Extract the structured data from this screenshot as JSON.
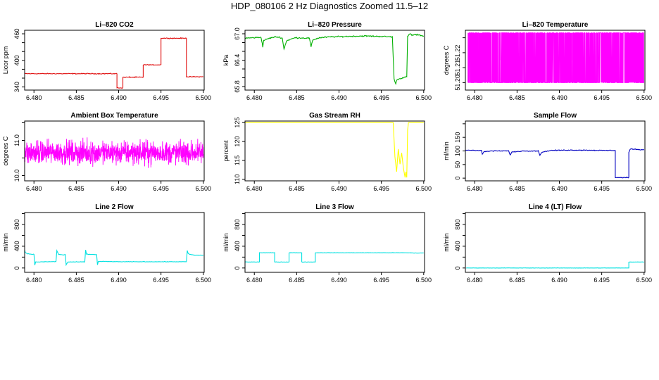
{
  "title": "HDP_080106  2 Hz Diagnostics Zoomed 11.5–12",
  "chart_data": [
    {
      "type": "line",
      "title": "Li–820 CO2",
      "ylabel": "Licor ppm",
      "color": "#e01010",
      "xlim": [
        6.4789,
        6.5001
      ],
      "ylim": [
        333,
        468
      ],
      "xticks": [
        "6.480",
        "6.485",
        "6.490",
        "6.495",
        "6.500"
      ],
      "yticks": [
        "340",
        "360",
        "380",
        "400",
        "420",
        "440",
        "460"
      ],
      "ytick_labels_shown": [
        "340",
        "400",
        "460"
      ],
      "noise": 0.8,
      "x": [
        6.4789,
        6.4898,
        6.4898,
        6.4905,
        6.4905,
        6.4913,
        6.4913,
        6.4921,
        6.4921,
        6.4929,
        6.4929,
        6.494,
        6.494,
        6.495,
        6.495,
        6.498,
        6.498,
        6.4984,
        6.4984,
        6.5
      ],
      "y": [
        370,
        370,
        338,
        338,
        362,
        362,
        362,
        362,
        362,
        362,
        390,
        390,
        390,
        390,
        450,
        450,
        363,
        363,
        363,
        363
      ]
    },
    {
      "type": "line",
      "title": "Li–820 Pressure",
      "ylabel": "kPa",
      "color": "#00b000",
      "xlim": [
        6.4789,
        6.5001
      ],
      "ylim": [
        65.72,
        67.08
      ],
      "xticks": [
        "6.480",
        "6.485",
        "6.490",
        "6.495",
        "6.500"
      ],
      "yticks": [
        "65.8",
        "66.0",
        "66.2",
        "66.4",
        "66.6",
        "66.8",
        "67.0"
      ],
      "ytick_labels_shown": [
        "65.8",
        "66.4",
        "67.0"
      ],
      "noise": 0.012,
      "x": [
        6.4789,
        6.4808,
        6.481,
        6.4811,
        6.4818,
        6.4825,
        6.483,
        6.4833,
        6.4835,
        6.4838,
        6.4848,
        6.4865,
        6.4867,
        6.4869,
        6.4877,
        6.489,
        6.491,
        6.493,
        6.495,
        6.4963,
        6.4965,
        6.4967,
        6.4968,
        6.4975,
        6.498,
        6.4981,
        6.4984,
        6.4986,
        6.4992,
        6.5
      ],
      "y": [
        66.9,
        66.92,
        66.7,
        66.85,
        66.9,
        66.93,
        66.92,
        66.9,
        66.65,
        66.84,
        66.91,
        66.9,
        66.7,
        66.86,
        66.91,
        66.93,
        66.94,
        66.95,
        66.94,
        66.93,
        65.98,
        65.85,
        65.95,
        66.0,
        66.02,
        66.94,
        67.0,
        66.97,
        66.98,
        66.95
      ]
    },
    {
      "type": "digital",
      "title": "Li–820 Temperature",
      "ylabel": "degrees C",
      "color": "#ff00ff",
      "xlim": [
        6.4789,
        6.5001
      ],
      "ylim": [
        51.195,
        51.235
      ],
      "xticks": [
        "6.480",
        "6.485",
        "6.490",
        "6.495",
        "6.500"
      ],
      "yticks": [
        "51.20",
        "51.21",
        "51.22",
        "51.23"
      ],
      "ytick_labels_shown": [
        "51.20",
        "51.21",
        "51.22"
      ],
      "x": [
        6.4792,
        6.5
      ],
      "y": [
        51.2,
        51.2333
      ]
    },
    {
      "type": "noise",
      "title": "Ambient Box Temperature",
      "ylabel": "degrees C",
      "color": "#ff00ff",
      "xlim": [
        6.4789,
        6.5001
      ],
      "ylim": [
        9.85,
        11.55
      ],
      "xticks": [
        "6.480",
        "6.485",
        "6.490",
        "6.495",
        "6.500"
      ],
      "yticks": [
        "10.0",
        "10.5",
        "11.0",
        "11.5"
      ],
      "ytick_labels_shown": [
        "10.0",
        "11.0"
      ],
      "x": [
        6.4789,
        6.5
      ],
      "y": [
        10.65,
        10.65
      ]
    },
    {
      "type": "line",
      "title": "Gas Stream RH",
      "ylabel": "percent",
      "color": "#ffff00",
      "xlim": [
        6.4789,
        6.5001
      ],
      "ylim": [
        109.6,
        125.4
      ],
      "xticks": [
        "6.480",
        "6.485",
        "6.490",
        "6.495",
        "6.500"
      ],
      "yticks": [
        "110",
        "115",
        "120",
        "125"
      ],
      "ytick_labels_shown": [
        "110",
        "115",
        "120",
        "125"
      ],
      "noise": 0.0,
      "x": [
        6.4789,
        6.4964,
        6.4966,
        6.4968,
        6.497,
        6.4972,
        6.4974,
        6.4976,
        6.4978,
        6.4979,
        6.498,
        6.4981,
        6.4982,
        6.5
      ],
      "y": [
        125,
        125,
        116,
        112,
        118,
        114,
        117,
        113,
        110.5,
        112,
        110.5,
        123,
        125,
        125
      ]
    },
    {
      "type": "line",
      "title": "Sample Flow",
      "ylabel": "ml/min",
      "color": "#0000c0",
      "xlim": [
        6.4789,
        6.5001
      ],
      "ylim": [
        -10,
        210
      ],
      "xticks": [
        "6.480",
        "6.485",
        "6.490",
        "6.495",
        "6.500"
      ],
      "yticks": [
        "0",
        "50",
        "100",
        "150",
        "200"
      ],
      "ytick_labels_shown": [
        "0",
        "50",
        "100",
        "150"
      ],
      "noise": 1.2,
      "x": [
        6.4789,
        6.4808,
        6.4809,
        6.4811,
        6.482,
        6.484,
        6.4842,
        6.4844,
        6.4858,
        6.4875,
        6.4877,
        6.4879,
        6.489,
        6.491,
        6.493,
        6.495,
        6.496,
        6.4966,
        6.4966,
        6.4982,
        6.4982,
        6.4984,
        6.499,
        6.5
      ],
      "y": [
        103,
        102,
        88,
        97,
        100,
        100,
        86,
        96,
        100,
        100,
        84,
        95,
        102,
        103,
        103,
        102,
        102,
        102,
        2,
        2,
        95,
        108,
        106,
        104
      ]
    },
    {
      "type": "line",
      "title": "Line 2 Flow",
      "ylabel": "ml/min",
      "color": "#00e0e0",
      "xlim": [
        6.4789,
        6.5001
      ],
      "ylim": [
        -80,
        1020
      ],
      "xticks": [
        "6.480",
        "6.485",
        "6.490",
        "6.495",
        "6.500"
      ],
      "yticks": [
        "0",
        "200",
        "400",
        "600",
        "800",
        "1000"
      ],
      "ytick_labels_shown": [
        "0",
        "400",
        "800"
      ],
      "noise": 4,
      "x": [
        6.4789,
        6.479,
        6.4793,
        6.48,
        6.4801,
        6.4802,
        6.4826,
        6.4827,
        6.4829,
        6.4835,
        6.4837,
        6.4838,
        6.484,
        6.486,
        6.4861,
        6.4862,
        6.4864,
        6.487,
        6.4874,
        6.4875,
        6.4876,
        6.4885,
        6.49,
        6.496,
        6.498,
        6.4981,
        6.4982,
        6.4984,
        6.499,
        6.5
      ],
      "y": [
        330,
        280,
        260,
        250,
        55,
        110,
        118,
        320,
        250,
        240,
        245,
        60,
        110,
        112,
        330,
        260,
        250,
        250,
        245,
        55,
        120,
        120,
        115,
        115,
        115,
        320,
        270,
        250,
        235,
        235
      ]
    },
    {
      "type": "line",
      "title": "Line 3 Flow",
      "ylabel": "ml/min",
      "color": "#00e0e0",
      "xlim": [
        6.4789,
        6.5001
      ],
      "ylim": [
        -80,
        1020
      ],
      "xticks": [
        "6.480",
        "6.485",
        "6.490",
        "6.495",
        "6.500"
      ],
      "yticks": [
        "0",
        "200",
        "400",
        "600",
        "800",
        "1000"
      ],
      "ytick_labels_shown": [
        "0",
        "400",
        "800"
      ],
      "noise": 3,
      "x": [
        6.4789,
        6.4806,
        6.4806,
        6.4824,
        6.4824,
        6.4841,
        6.4841,
        6.4856,
        6.4856,
        6.4872,
        6.4872,
        6.498,
        6.499,
        6.5
      ],
      "y": [
        110,
        110,
        280,
        280,
        110,
        110,
        280,
        280,
        110,
        110,
        280,
        280,
        275,
        275
      ]
    },
    {
      "type": "line",
      "title": "Line 4 (LT) Flow",
      "ylabel": "ml/min",
      "color": "#00e0e0",
      "xlim": [
        6.4789,
        6.5001
      ],
      "ylim": [
        -80,
        1020
      ],
      "xticks": [
        "6.480",
        "6.485",
        "6.490",
        "6.495",
        "6.500"
      ],
      "yticks": [
        "0",
        "200",
        "400",
        "600",
        "800",
        "1000"
      ],
      "ytick_labels_shown": [
        "0",
        "400",
        "800"
      ],
      "noise": 2,
      "x": [
        6.479,
        6.4982,
        6.4982,
        6.5
      ],
      "y": [
        0,
        0,
        110,
        110
      ]
    }
  ]
}
